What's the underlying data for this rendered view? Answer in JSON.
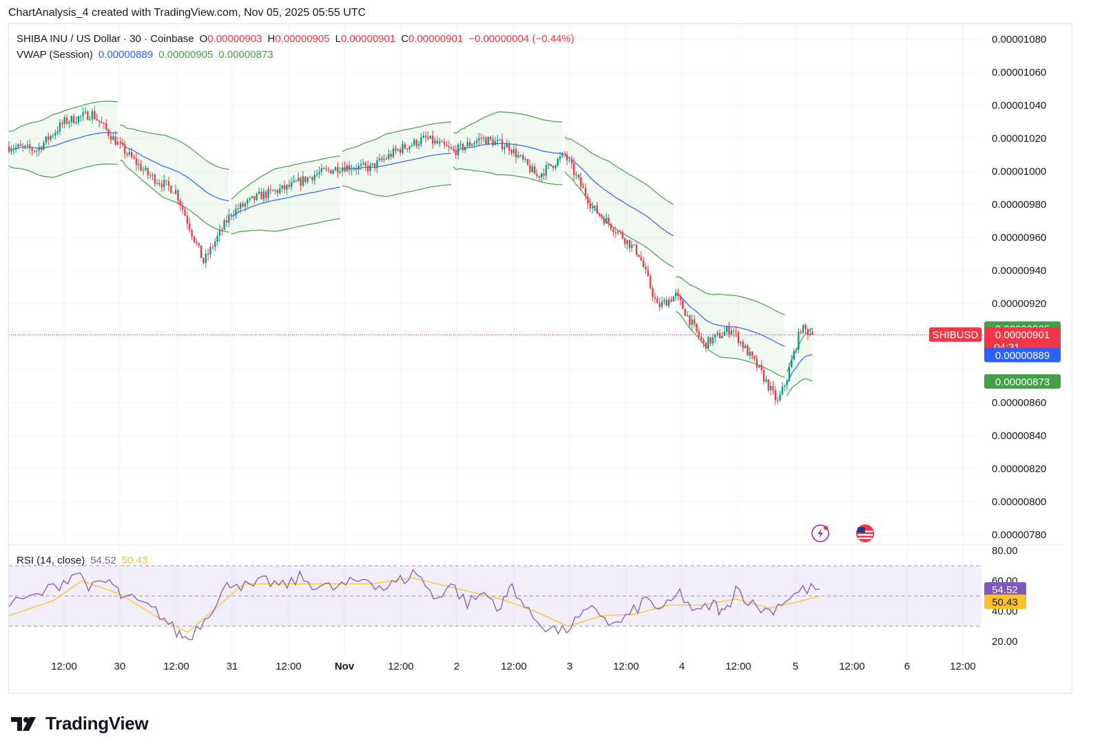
{
  "header": {
    "credit": "ChartAnalysis_4 created with TradingView.com, Nov 05, 2025 05:55 UTC"
  },
  "legend": {
    "symbol": "SHIBA INU / US Dollar · 30 · Coinbase",
    "open_label": "O",
    "open": "0.00000903",
    "high_label": "H",
    "high": "0.00000905",
    "low_label": "L",
    "low": "0.00000901",
    "close_label": "C",
    "close": "0.00000901",
    "change": "−0.00000004 (−0.44%)",
    "vwap_title": "VWAP (Session)",
    "vwap_mid": "0.00000889",
    "vwap_upper": "0.00000905",
    "vwap_lower": "0.00000873",
    "rsi_title": "RSI (14, close)",
    "rsi_value": "54.52",
    "rsi_ma": "50.43"
  },
  "price_axis": {
    "labels": [
      "0.00001080",
      "0.00001060",
      "0.00001040",
      "0.00001020",
      "0.00001000",
      "0.00000980",
      "0.00000960",
      "0.00000940",
      "0.00000920",
      "0.00000860",
      "0.00000840",
      "0.00000820",
      "0.00000800",
      "0.00000780"
    ],
    "badges": {
      "upper": "0.00000905",
      "close": "0.00000901",
      "countdown": "04:31",
      "mid": "0.00000889",
      "lower": "0.00000873",
      "symbol_tag": "SHIBUSD"
    }
  },
  "rsi_axis": {
    "labels": [
      "80.00",
      "60.00",
      "40.00",
      "20.00"
    ],
    "badges": {
      "rsi": "54.52",
      "ma": "50.43"
    }
  },
  "time_axis": {
    "labels": [
      "12:00",
      "30",
      "12:00",
      "31",
      "12:00",
      "Nov",
      "12:00",
      "2",
      "12:00",
      "3",
      "12:00",
      "4",
      "12:00",
      "5",
      "12:00",
      "6",
      "12:00"
    ]
  },
  "icons": [
    "lightning-icon",
    "us-flag-icon"
  ],
  "brand": {
    "name": "TradingView"
  },
  "colors": {
    "up": "#089981",
    "down": "#f23645",
    "vwap": "#2962ff",
    "band": "#43a047",
    "band_fill": "rgba(76,175,80,0.08)",
    "rsi": "#7e57c2",
    "rsi_ma": "#fbc02d",
    "rsi_band_fill": "rgba(126,87,194,0.1)"
  },
  "chart_data": [
    {
      "type": "candlestick",
      "title": "SHIBA INU / US Dollar · 30 · Coinbase",
      "interval": "30",
      "ylim": [
        7.8e-06,
        1.08e-05
      ],
      "xlim": [
        "2025-10-29T00:00",
        "2025-11-06T18:00"
      ],
      "grid": true,
      "close_path": [
        {
          "t": "2025-10-29T00:00",
          "v": 1.015e-05
        },
        {
          "t": "2025-10-29T06:00",
          "v": 1.013e-05
        },
        {
          "t": "2025-10-29T12:00",
          "v": 1.03e-05
        },
        {
          "t": "2025-10-29T18:00",
          "v": 1.035e-05
        },
        {
          "t": "2025-10-30T00:00",
          "v": 1.015e-05
        },
        {
          "t": "2025-10-30T06:00",
          "v": 9.98e-06
        },
        {
          "t": "2025-10-30T12:00",
          "v": 9.88e-06
        },
        {
          "t": "2025-10-30T18:00",
          "v": 9.45e-06
        },
        {
          "t": "2025-10-31T00:00",
          "v": 9.75e-06
        },
        {
          "t": "2025-10-31T06:00",
          "v": 9.85e-06
        },
        {
          "t": "2025-10-31T12:00",
          "v": 9.9e-06
        },
        {
          "t": "2025-10-31T18:00",
          "v": 9.98e-06
        },
        {
          "t": "2025-11-01T00:00",
          "v": 1.003e-05
        },
        {
          "t": "2025-11-01T06:00",
          "v": 1.002e-05
        },
        {
          "t": "2025-11-01T12:00",
          "v": 1.013e-05
        },
        {
          "t": "2025-11-01T18:00",
          "v": 1.02e-05
        },
        {
          "t": "2025-11-02T00:00",
          "v": 1.012e-05
        },
        {
          "t": "2025-11-02T06:00",
          "v": 1.02e-05
        },
        {
          "t": "2025-11-02T12:00",
          "v": 1.015e-05
        },
        {
          "t": "2025-11-02T18:00",
          "v": 9.97e-06
        },
        {
          "t": "2025-11-03T00:00",
          "v": 1.01e-05
        },
        {
          "t": "2025-11-03T06:00",
          "v": 9.78e-06
        },
        {
          "t": "2025-11-03T12:00",
          "v": 9.62e-06
        },
        {
          "t": "2025-11-03T16:00",
          "v": 9.5e-06
        },
        {
          "t": "2025-11-03T20:00",
          "v": 9.18e-06
        },
        {
          "t": "2025-11-04T00:00",
          "v": 9.25e-06
        },
        {
          "t": "2025-11-04T06:00",
          "v": 8.95e-06
        },
        {
          "t": "2025-11-04T12:00",
          "v": 9.05e-06
        },
        {
          "t": "2025-11-04T18:00",
          "v": 8.8e-06
        },
        {
          "t": "2025-11-04T22:00",
          "v": 8.6e-06
        },
        {
          "t": "2025-11-05T00:00",
          "v": 8.75e-06
        },
        {
          "t": "2025-11-05T03:00",
          "v": 9.05e-06
        },
        {
          "t": "2025-11-05T05:55",
          "v": 9.01e-06
        }
      ],
      "series": [
        {
          "name": "VWAP (Session)",
          "value": 8.89e-06
        },
        {
          "name": "VWAP upper band",
          "value": 9.05e-06
        },
        {
          "name": "VWAP lower band",
          "value": 8.73e-06
        }
      ],
      "last": {
        "open": 9.03e-06,
        "high": 9.05e-06,
        "low": 9.01e-06,
        "close": 9.01e-06
      }
    },
    {
      "type": "line",
      "title": "RSI (14, close)",
      "ylim": [
        15,
        85
      ],
      "bands": [
        30,
        50,
        70
      ],
      "series": [
        {
          "name": "RSI",
          "value": 54.52,
          "values": [
            [
              0,
              44
            ],
            [
              5,
              50
            ],
            [
              9,
              58
            ],
            [
              12,
              66
            ],
            [
              15,
              55
            ],
            [
              18,
              60
            ],
            [
              20,
              50
            ],
            [
              24,
              44
            ],
            [
              27,
              38
            ],
            [
              30,
              26
            ],
            [
              32,
              22
            ],
            [
              35,
              35
            ],
            [
              38,
              52
            ],
            [
              40,
              60
            ],
            [
              43,
              55
            ],
            [
              46,
              60
            ],
            [
              49,
              56
            ],
            [
              52,
              62
            ],
            [
              55,
              57
            ],
            [
              58,
              55
            ],
            [
              61,
              58
            ],
            [
              64,
              62
            ],
            [
              67,
              55
            ],
            [
              70,
              60
            ],
            [
              73,
              66
            ],
            [
              76,
              48
            ],
            [
              79,
              58
            ],
            [
              82,
              45
            ],
            [
              85,
              52
            ],
            [
              88,
              42
            ],
            [
              90,
              58
            ],
            [
              93,
              38
            ],
            [
              96,
              30
            ],
            [
              99,
              26
            ],
            [
              102,
              35
            ],
            [
              105,
              42
            ],
            [
              108,
              30
            ],
            [
              111,
              37
            ],
            [
              114,
              48
            ],
            [
              117,
              40
            ],
            [
              120,
              52
            ],
            [
              123,
              38
            ],
            [
              126,
              45
            ],
            [
              128,
              38
            ],
            [
              130,
              56
            ],
            [
              133,
              44
            ],
            [
              136,
              40
            ],
            [
              139,
              48
            ],
            [
              142,
              54
            ],
            [
              145,
              55
            ]
          ]
        },
        {
          "name": "RSI-based MA",
          "value": 50.43,
          "values": [
            [
              0,
              37
            ],
            [
              8,
              47
            ],
            [
              13,
              60
            ],
            [
              20,
              51
            ],
            [
              27,
              35
            ],
            [
              32,
              26
            ],
            [
              37,
              42
            ],
            [
              42,
              58
            ],
            [
              50,
              58
            ],
            [
              58,
              58
            ],
            [
              65,
              58
            ],
            [
              72,
              62
            ],
            [
              80,
              55
            ],
            [
              88,
              48
            ],
            [
              94,
              40
            ],
            [
              100,
              30
            ],
            [
              106,
              37
            ],
            [
              112,
              38
            ],
            [
              118,
              44
            ],
            [
              124,
              44
            ],
            [
              130,
              48
            ],
            [
              136,
              42
            ],
            [
              141,
              46
            ],
            [
              145,
              50
            ]
          ]
        }
      ]
    }
  ]
}
